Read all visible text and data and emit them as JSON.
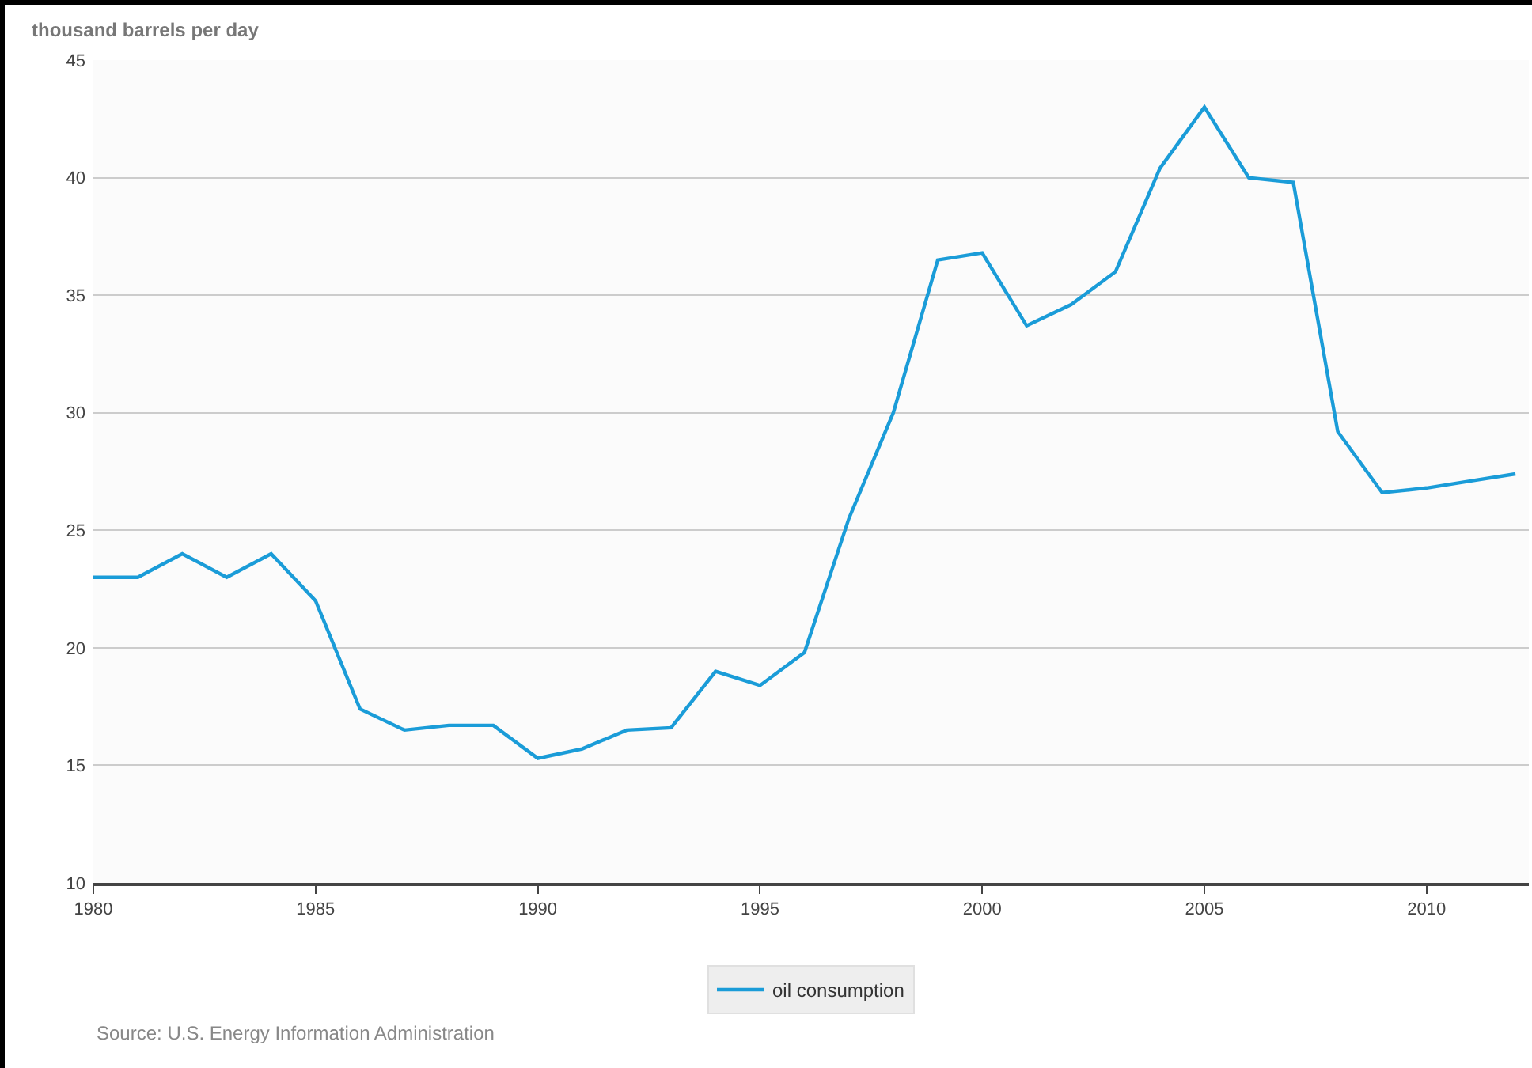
{
  "chart_data": {
    "type": "line",
    "ylabel": "thousand barrels per day",
    "x": [
      1980,
      1981,
      1982,
      1983,
      1984,
      1985,
      1986,
      1987,
      1988,
      1989,
      1990,
      1991,
      1992,
      1993,
      1994,
      1995,
      1996,
      1997,
      1998,
      1999,
      2000,
      2001,
      2002,
      2003,
      2004,
      2005,
      2006,
      2007,
      2008,
      2009,
      2010,
      2011,
      2012
    ],
    "series": [
      {
        "name": "oil consumption",
        "color": "#1a9cd8",
        "values": [
          23.0,
          23.0,
          24.0,
          23.0,
          24.0,
          22.0,
          17.4,
          16.5,
          16.7,
          16.7,
          15.3,
          15.7,
          16.5,
          16.6,
          19.0,
          18.4,
          19.8,
          25.5,
          30.0,
          36.5,
          36.8,
          33.7,
          34.6,
          36.0,
          40.4,
          43.0,
          40.0,
          39.8,
          29.2,
          26.6,
          26.8,
          27.1,
          27.4
        ]
      }
    ],
    "xlim": [
      1980,
      2012.3
    ],
    "xticks": [
      1980,
      1985,
      1990,
      1995,
      2000,
      2005,
      2010
    ],
    "ylim": [
      10,
      45
    ],
    "yticks": [
      10,
      15,
      20,
      25,
      30,
      35,
      40,
      45
    ],
    "grid": "y",
    "legend": "bottom",
    "marker": "none",
    "line_style": "solid",
    "annotations": [
      "Source: U.S. Energy Information Administration"
    ]
  }
}
